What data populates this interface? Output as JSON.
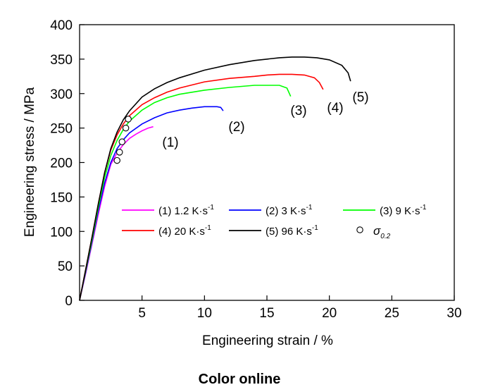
{
  "chart_data": {
    "type": "line",
    "xlabel": "Engineering strain / %",
    "ylabel": "Engineering stress / MPa",
    "xlim": [
      0,
      30
    ],
    "ylim": [
      0,
      400
    ],
    "xticks": [
      "5",
      "10",
      "15",
      "20",
      "25",
      "30"
    ],
    "yticks": [
      "0",
      "50",
      "100",
      "150",
      "200",
      "250",
      "300",
      "350",
      "400"
    ],
    "grid": false,
    "legend_placement": "center",
    "series": [
      {
        "name": "(1) 1.2 K·s-1",
        "label_text": "(1) 1.2 K·s",
        "unit_exp": "-1",
        "curve_label": "(1)",
        "color": "#ff00ff",
        "x": [
          0,
          0.5,
          1.0,
          1.5,
          2.0,
          2.5,
          3.0,
          3.5,
          4.0,
          4.5,
          5.0,
          5.5,
          5.9
        ],
        "y": [
          0,
          40,
          82,
          125,
          165,
          197,
          214,
          226,
          235,
          241,
          246,
          250,
          252
        ]
      },
      {
        "name": "(2) 3 K·s-1",
        "label_text": "(2) 3 K·s",
        "unit_exp": "-1",
        "curve_label": "(2)",
        "color": "#0000ff",
        "x": [
          0,
          0.5,
          1.0,
          1.5,
          2.0,
          2.5,
          3.0,
          3.5,
          4.0,
          5.0,
          6.0,
          7.0,
          8.0,
          9.0,
          10.0,
          11.0,
          11.3,
          11.5
        ],
        "y": [
          0,
          42,
          85,
          130,
          170,
          200,
          220,
          233,
          243,
          256,
          265,
          272,
          276,
          279,
          281,
          281,
          280,
          275
        ]
      },
      {
        "name": "(3) 9 K·s-1",
        "label_text": "(3) 9 K·s",
        "unit_exp": "-1",
        "curve_label": "(3)",
        "color": "#00ff00",
        "x": [
          0,
          0.5,
          1.0,
          1.5,
          2.0,
          2.5,
          3.0,
          3.5,
          4.0,
          5.0,
          6.0,
          7.0,
          8.0,
          10.0,
          12.0,
          14.0,
          15.0,
          16.0,
          16.6,
          16.9
        ],
        "y": [
          0,
          44,
          88,
          135,
          178,
          210,
          232,
          248,
          260,
          276,
          287,
          294,
          299,
          305,
          309,
          312,
          312,
          312,
          308,
          296
        ]
      },
      {
        "name": "(4) 20 K·s-1",
        "label_text": "(4) 20 K·s",
        "unit_exp": "-1",
        "curve_label": "(4)",
        "color": "#ff0000",
        "x": [
          0,
          0.5,
          1.0,
          1.5,
          2.0,
          2.5,
          3.0,
          3.5,
          4.0,
          5.0,
          6.0,
          7.0,
          8.0,
          10.0,
          12.0,
          14.0,
          15.0,
          16.0,
          17.0,
          18.0,
          18.8,
          19.2,
          19.5
        ],
        "y": [
          0,
          46,
          92,
          140,
          185,
          218,
          240,
          256,
          268,
          284,
          294,
          302,
          308,
          317,
          322,
          325,
          327,
          328,
          328,
          327,
          323,
          316,
          306
        ]
      },
      {
        "name": "(5) 96 K·s-1",
        "label_text": "(5) 96 K·s",
        "unit_exp": "-1",
        "curve_label": "(5)",
        "color": "#000000",
        "x": [
          0,
          0.5,
          1.0,
          1.5,
          2.0,
          2.5,
          3.0,
          3.5,
          4.0,
          5.0,
          6.0,
          7.0,
          8.0,
          10.0,
          12.0,
          14.0,
          16.0,
          17.0,
          18.0,
          19.0,
          20.0,
          21.0,
          21.5,
          21.7
        ],
        "y": [
          0,
          46,
          92,
          140,
          185,
          220,
          244,
          262,
          275,
          295,
          307,
          316,
          323,
          334,
          342,
          348,
          352,
          353,
          353,
          352,
          349,
          341,
          330,
          318
        ]
      }
    ],
    "yield_marker": {
      "name": "σ0.2",
      "symbol": "σ",
      "subscript": "0.2",
      "points": [
        {
          "x": 3.0,
          "y": 203
        },
        {
          "x": 3.2,
          "y": 215
        },
        {
          "x": 3.4,
          "y": 230
        },
        {
          "x": 3.7,
          "y": 250
        },
        {
          "x": 3.9,
          "y": 263
        }
      ]
    }
  },
  "footer": "Color online"
}
